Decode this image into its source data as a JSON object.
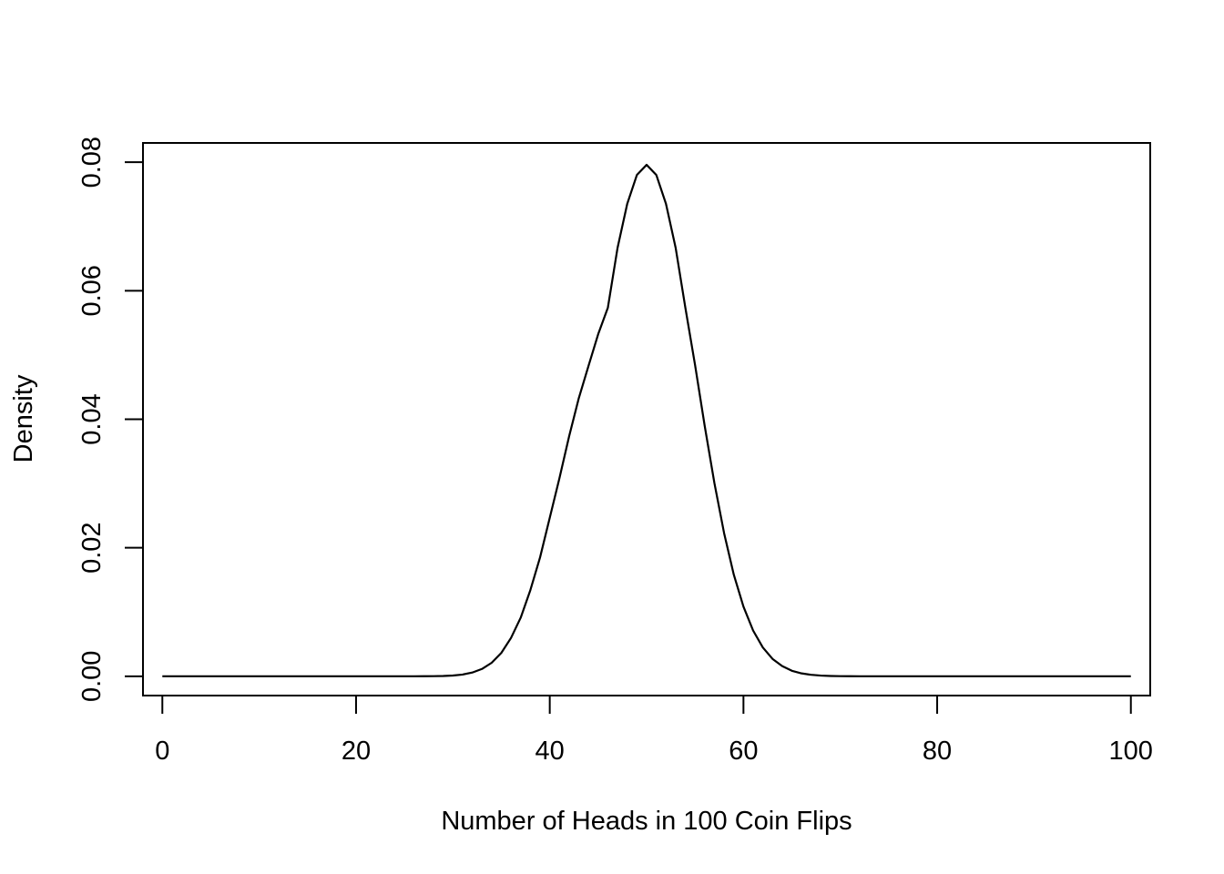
{
  "chart_data": {
    "type": "line",
    "title": "",
    "xlabel": "Number of Heads in 100 Coin Flips",
    "ylabel": "Density",
    "xlim": [
      -2,
      102
    ],
    "ylim": [
      -0.003,
      0.083
    ],
    "x_ticks": [
      0,
      20,
      40,
      60,
      80,
      100
    ],
    "x_tick_labels": [
      "0",
      "20",
      "40",
      "60",
      "80",
      "100"
    ],
    "y_ticks": [
      0,
      0.02,
      0.04,
      0.06,
      0.08
    ],
    "y_tick_labels": [
      "0.00",
      "0.02",
      "0.04",
      "0.06",
      "0.08"
    ],
    "grid": false,
    "legend": "none",
    "series": [
      {
        "x": [
          0,
          1,
          2,
          3,
          4,
          5,
          6,
          7,
          8,
          9,
          10,
          11,
          12,
          13,
          14,
          15,
          16,
          17,
          18,
          19,
          20,
          21,
          22,
          23,
          24,
          25,
          26,
          27,
          28,
          29,
          30,
          31,
          32,
          33,
          34,
          35,
          36,
          37,
          38,
          39,
          40,
          41,
          42,
          43,
          44,
          45,
          46,
          47,
          48,
          49,
          50,
          51,
          52,
          53,
          54,
          55,
          56,
          57,
          58,
          59,
          60,
          61,
          62,
          63,
          64,
          65,
          66,
          67,
          68,
          69,
          70,
          71,
          72,
          73,
          74,
          75,
          76,
          77,
          78,
          79,
          80,
          81,
          82,
          83,
          84,
          85,
          86,
          87,
          88,
          89,
          90,
          91,
          92,
          93,
          94,
          95,
          96,
          97,
          98,
          99,
          100
        ],
        "y": [
          0,
          0,
          0,
          0,
          0,
          0,
          0,
          0,
          0,
          0,
          0,
          0,
          0,
          0,
          0,
          0,
          0,
          0,
          0,
          0,
          0,
          0,
          0,
          0,
          0,
          0,
          0,
          1e-05,
          2e-05,
          5e-05,
          0.00012,
          0.00027,
          0.00058,
          0.00114,
          0.0021,
          0.00364,
          0.00597,
          0.00912,
          0.01342,
          0.01851,
          0.02467,
          0.03083,
          0.03735,
          0.04329,
          0.04829,
          0.05324,
          0.05736,
          0.06667,
          0.07353,
          0.07803,
          0.07959,
          0.07803,
          0.07353,
          0.06667,
          0.05736,
          0.04847,
          0.03895,
          0.03007,
          0.02228,
          0.01583,
          0.01084,
          0.00711,
          0.00448,
          0.00271,
          0.00159,
          0.00086,
          0.00045,
          0.00023,
          0.00011,
          5e-05,
          2e-05,
          1e-05,
          0,
          0,
          0,
          0,
          0,
          0,
          0,
          0,
          0,
          0,
          0,
          0,
          0,
          0,
          0,
          0,
          0,
          0,
          0,
          0,
          0,
          0,
          0,
          0,
          0,
          0,
          0,
          0,
          0
        ]
      }
    ]
  }
}
